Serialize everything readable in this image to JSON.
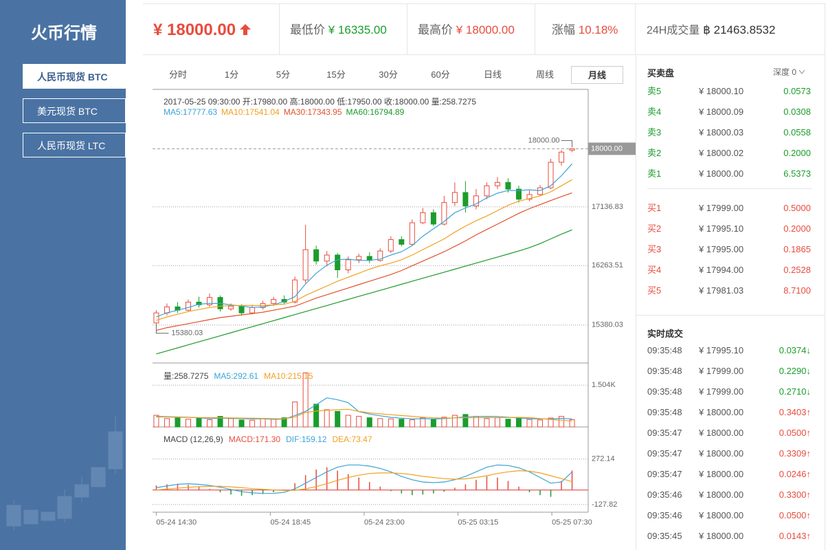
{
  "sidebar": {
    "title": "火币行情",
    "items": [
      "人民币现货 BTC",
      "美元现货 BTC",
      "人民币现货 LTC"
    ]
  },
  "header": {
    "price": "¥ 18000.00",
    "stats": [
      {
        "label": "最低价",
        "value": "¥ 16335.00",
        "color": "#1a9d2b"
      },
      {
        "label": "最高价",
        "value": "¥ 18000.00",
        "color": "#e84c3d"
      },
      {
        "label": "涨幅",
        "value": "10.18%",
        "color": "#e84c3d"
      }
    ],
    "volume": {
      "label": "24H成交量",
      "value": "฿ 21463.8532"
    }
  },
  "tabs": [
    "分时",
    "1分",
    "5分",
    "15分",
    "30分",
    "60分",
    "日线",
    "周线",
    "月线"
  ],
  "orderbook": {
    "title": "买卖盘",
    "depth": "深度 0",
    "asks": [
      [
        "卖5",
        "¥ 18000.10",
        "0.0573"
      ],
      [
        "卖4",
        "¥ 18000.09",
        "0.0308"
      ],
      [
        "卖3",
        "¥ 18000.03",
        "0.0558"
      ],
      [
        "卖2",
        "¥ 18000.02",
        "0.2000"
      ],
      [
        "卖1",
        "¥ 18000.00",
        "6.5373"
      ]
    ],
    "bids": [
      [
        "买1",
        "¥ 17999.00",
        "0.5000"
      ],
      [
        "买2",
        "¥ 17995.10",
        "0.2000"
      ],
      [
        "买3",
        "¥ 17995.00",
        "0.1865"
      ],
      [
        "买4",
        "¥ 17994.00",
        "0.2528"
      ],
      [
        "买5",
        "¥ 17981.03",
        "8.7100"
      ]
    ]
  },
  "trades": {
    "title": "实时成交",
    "rows": [
      [
        "09:35:48",
        "¥ 17995.10",
        "0.0374↓",
        "#1a9d2b"
      ],
      [
        "09:35:48",
        "¥ 17999.00",
        "0.2290↓",
        "#1a9d2b"
      ],
      [
        "09:35:48",
        "¥ 17999.00",
        "0.2710↓",
        "#1a9d2b"
      ],
      [
        "09:35:48",
        "¥ 18000.00",
        "0.3403↑",
        "#e84c3d"
      ],
      [
        "09:35:47",
        "¥ 18000.00",
        "0.0500↑",
        "#e84c3d"
      ],
      [
        "09:35:47",
        "¥ 18000.00",
        "0.3309↑",
        "#e84c3d"
      ],
      [
        "09:35:47",
        "¥ 18000.00",
        "0.0246↑",
        "#e84c3d"
      ],
      [
        "09:35:46",
        "¥ 18000.00",
        "0.3300↑",
        "#e84c3d"
      ],
      [
        "09:35:46",
        "¥ 18000.00",
        "0.0500↑",
        "#e84c3d"
      ],
      [
        "09:35:45",
        "¥ 18000.00",
        "0.0143↑",
        "#e84c3d"
      ]
    ]
  },
  "chart_data": [
    {
      "type": "candlestick",
      "title": "2017-05-25 09:30:00  开:17980.00  高:18000.00  低:17950.00  收:18000.00  量:258.7275",
      "up_color": "#e84c3d",
      "down_color": "#1a9d2b",
      "xlim": [
        -0.35,
        39.35
      ],
      "ylim": [
        14815,
        18832
      ],
      "yticks": [
        15380.03,
        16263.51,
        17136.83
      ],
      "grid": true,
      "current_price": {
        "value": 18000,
        "label": "18000.00"
      },
      "annotations": [
        {
          "value": 18000,
          "label": "18000.00"
        },
        {
          "value": 15380.03,
          "label": "15380.03"
        }
      ],
      "candles": [
        [
          15410,
          15560,
          15600,
          15380
        ],
        [
          15560,
          15650,
          15700,
          15520
        ],
        [
          15650,
          15600,
          15720,
          15560
        ],
        [
          15600,
          15720,
          15760,
          15580
        ],
        [
          15720,
          15680,
          15800,
          15640
        ],
        [
          15680,
          15790,
          15850,
          15650
        ],
        [
          15790,
          15620,
          15820,
          15580
        ],
        [
          15620,
          15660,
          15700,
          15590
        ],
        [
          15660,
          15560,
          15690,
          15520
        ],
        [
          15560,
          15640,
          15680,
          15540
        ],
        [
          15640,
          15700,
          15740,
          15610
        ],
        [
          15700,
          15760,
          15800,
          15660
        ],
        [
          15760,
          15720,
          15820,
          15690
        ],
        [
          15720,
          16050,
          16100,
          15700
        ],
        [
          16050,
          16500,
          16870,
          16000
        ],
        [
          16500,
          16330,
          16560,
          16280
        ],
        [
          16330,
          16420,
          16480,
          16250
        ],
        [
          16420,
          16200,
          16450,
          16080
        ],
        [
          16200,
          16350,
          16400,
          16150
        ],
        [
          16350,
          16400,
          16440,
          16300
        ],
        [
          16400,
          16340,
          16460,
          16300
        ],
        [
          16340,
          16480,
          16520,
          16320
        ],
        [
          16480,
          16650,
          16700,
          16450
        ],
        [
          16650,
          16580,
          16700,
          16550
        ],
        [
          16580,
          16900,
          16950,
          16560
        ],
        [
          16900,
          17050,
          17120,
          16880
        ],
        [
          17050,
          16880,
          17100,
          16850
        ],
        [
          16880,
          17200,
          17300,
          16860
        ],
        [
          17200,
          17350,
          17500,
          17150
        ],
        [
          17350,
          17150,
          17520,
          17050
        ],
        [
          17150,
          17300,
          17400,
          17100
        ],
        [
          17300,
          17450,
          17500,
          17250
        ],
        [
          17450,
          17500,
          17580,
          17400
        ],
        [
          17500,
          17400,
          17560,
          17350
        ],
        [
          17400,
          17250,
          17450,
          17200
        ],
        [
          17250,
          17320,
          17380,
          17220
        ],
        [
          17320,
          17420,
          17460,
          17300
        ],
        [
          17420,
          17800,
          17850,
          17400
        ],
        [
          17800,
          17950,
          17980,
          17750
        ],
        [
          17980,
          18000,
          18000,
          17950
        ]
      ],
      "series": [
        {
          "name": "MA5:17777.63",
          "color": "#3ba2d8",
          "values": [
            15500,
            15560,
            15600,
            15640,
            15690,
            15700,
            15700,
            15680,
            15660,
            15640,
            15650,
            15680,
            15730,
            15800,
            15990,
            16150,
            16270,
            16350,
            16360,
            16340,
            16340,
            16360,
            16420,
            16470,
            16560,
            16700,
            16810,
            16920,
            17050,
            17120,
            17180,
            17270,
            17340,
            17380,
            17380,
            17390,
            17380,
            17450,
            17600,
            17777.63
          ]
        },
        {
          "name": "MA10:17541.04",
          "color": "#f0a020",
          "values": [
            15450,
            15500,
            15540,
            15580,
            15610,
            15640,
            15660,
            15670,
            15670,
            15670,
            15670,
            15680,
            15690,
            15730,
            15820,
            15890,
            15960,
            16030,
            16090,
            16150,
            16210,
            16260,
            16300,
            16350,
            16420,
            16500,
            16580,
            16660,
            16760,
            16850,
            16930,
            17000,
            17080,
            17160,
            17220,
            17260,
            17300,
            17360,
            17450,
            17541.04
          ]
        },
        {
          "name": "MA30:17343.95",
          "color": "#e0502a",
          "values": [
            15300,
            15340,
            15370,
            15400,
            15430,
            15460,
            15490,
            15510,
            15530,
            15550,
            15570,
            15600,
            15630,
            15660,
            15720,
            15780,
            15830,
            15880,
            15930,
            15980,
            16030,
            16080,
            16130,
            16190,
            16260,
            16330,
            16400,
            16470,
            16550,
            16630,
            16720,
            16800,
            16880,
            16960,
            17040,
            17110,
            17170,
            17230,
            17290,
            17343.95
          ]
        },
        {
          "name": "MA60:16794.89",
          "color": "#1a9a2a",
          "values": [
            14950,
            14995,
            15040,
            15085,
            15130,
            15175,
            15220,
            15265,
            15310,
            15355,
            15400,
            15445,
            15490,
            15535,
            15580,
            15625,
            15670,
            15715,
            15760,
            15805,
            15850,
            15895,
            15940,
            15985,
            16030,
            16075,
            16120,
            16165,
            16210,
            16255,
            16300,
            16345,
            16390,
            16435,
            16480,
            16530,
            16590,
            16660,
            16730,
            16794.89
          ]
        }
      ]
    },
    {
      "type": "bar",
      "title": "量:258.7275",
      "ylim": [
        0,
        2005
      ],
      "yticks": [
        {
          "value": 1504,
          "label": "1.504K"
        }
      ],
      "grid": true,
      "values": [
        420,
        300,
        350,
        280,
        310,
        260,
        380,
        300,
        250,
        240,
        300,
        280,
        330,
        900,
        1950,
        820,
        620,
        560,
        420,
        380,
        330,
        300,
        290,
        280,
        260,
        330,
        280,
        350,
        420,
        450,
        380,
        300,
        330,
        280,
        310,
        270,
        250,
        320,
        380,
        258.7275
      ],
      "series": [
        {
          "name": "MA5:292.61",
          "color": "#3ba2d8",
          "values": [
            380,
            370,
            360,
            350,
            332,
            300,
            316,
            306,
            300,
            286,
            294,
            274,
            280,
            412,
            562,
            800,
            1048,
            980,
            874,
            552,
            462,
            400,
            346,
            316,
            292,
            298,
            288,
            300,
            328,
            366,
            376,
            380,
            376,
            348,
            324,
            298,
            288,
            286,
            306,
            292.61
          ]
        },
        {
          "name": "MA10:215.15",
          "color": "#f0a020",
          "values": [
            360,
            355,
            350,
            345,
            340,
            335,
            330,
            325,
            320,
            314,
            307,
            296,
            294,
            356,
            520,
            573,
            600,
            620,
            636,
            560,
            508,
            470,
            440,
            410,
            380,
            352,
            330,
            317,
            326,
            330,
            335,
            333,
            340,
            340,
            346,
            337,
            300,
            270,
            240,
            215.15
          ]
        }
      ]
    },
    {
      "type": "macd",
      "title": "MACD  (12,26,9)",
      "ylim": [
        -195,
        512
      ],
      "yticks": [
        272.14,
        -127.82
      ],
      "grid": true,
      "xlim": [
        -0.35,
        39.35
      ],
      "xticks": [
        {
          "value": 0,
          "label": "05-24 14:30"
        },
        {
          "value": 10.7,
          "label": "05-24 18:45"
        },
        {
          "value": 19.5,
          "label": "05-24 23:00"
        },
        {
          "value": 28.3,
          "label": "05-25 03:15"
        },
        {
          "value": 37.1,
          "label": "05-25 07:30"
        }
      ],
      "histogram": {
        "name": "MACD:171.30",
        "color": "#e84c3d",
        "down_color": "#1a9d2b",
        "values": [
          40,
          50,
          55,
          45,
          30,
          10,
          -20,
          -40,
          -50,
          -45,
          -35,
          -20,
          0,
          60,
          130,
          180,
          200,
          170,
          140,
          110,
          70,
          30,
          -10,
          -30,
          -45,
          -40,
          -30,
          -15,
          20,
          50,
          90,
          120,
          110,
          80,
          30,
          -20,
          -45,
          -60,
          80,
          171.3
        ]
      },
      "series": [
        {
          "name": "DIF:159.12",
          "color": "#3ba2d8",
          "values": [
            20,
            35,
            50,
            55,
            50,
            40,
            25,
            5,
            -15,
            -25,
            -30,
            -30,
            -20,
            10,
            60,
            110,
            160,
            200,
            220,
            220,
            210,
            190,
            160,
            120,
            90,
            70,
            65,
            70,
            90,
            120,
            160,
            200,
            220,
            215,
            195,
            160,
            110,
            60,
            70,
            159.12
          ]
        },
        {
          "name": "DEA:73.47",
          "color": "#f0a020",
          "values": [
            0,
            8,
            16,
            24,
            30,
            32,
            32,
            28,
            20,
            12,
            6,
            0,
            -4,
            -2,
            10,
            30,
            55,
            85,
            110,
            130,
            145,
            150,
            150,
            145,
            135,
            120,
            110,
            100,
            95,
            98,
            110,
            125,
            145,
            160,
            170,
            165,
            150,
            125,
            100,
            73.47
          ]
        }
      ]
    }
  ]
}
